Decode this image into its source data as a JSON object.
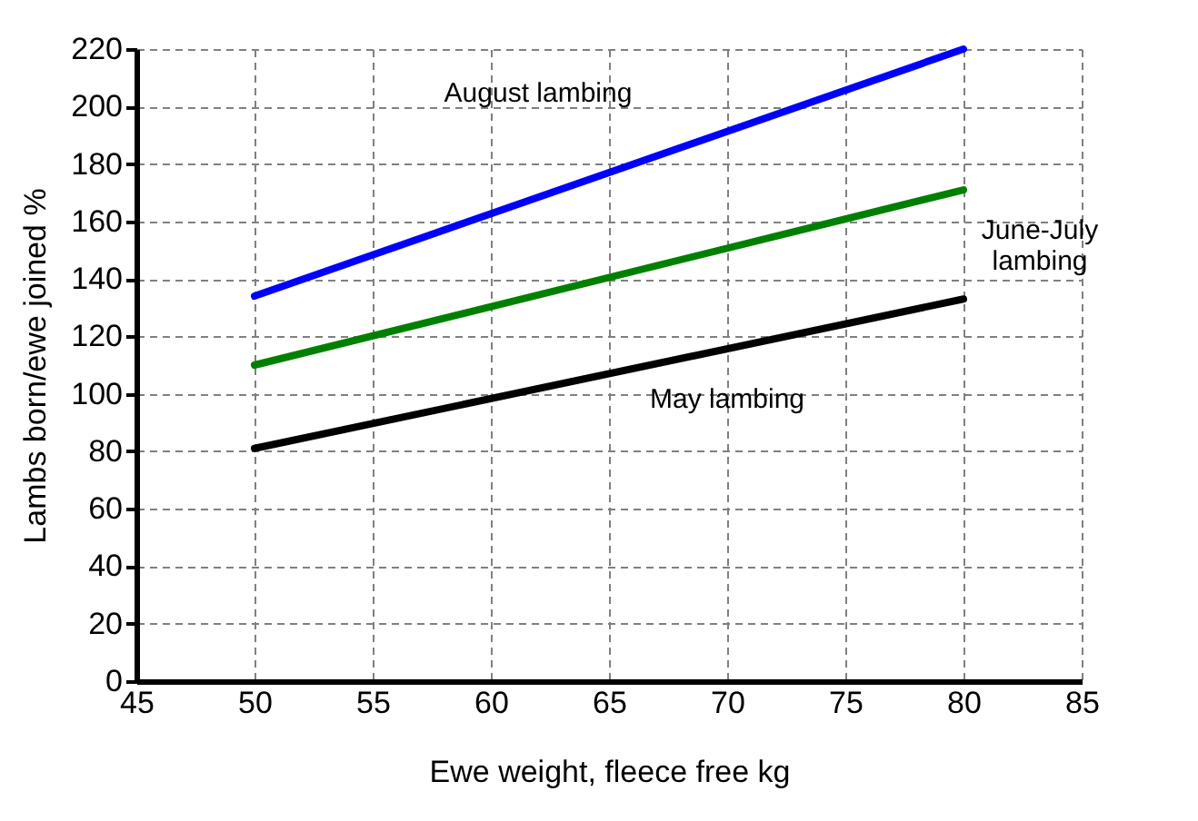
{
  "chart_data": {
    "type": "line",
    "xlabel": "Ewe weight, fleece free kg",
    "ylabel": "Lambs born/ewe joined %",
    "x": [
      50,
      80
    ],
    "series": [
      {
        "name": "August lambing",
        "color": "#0000ff",
        "values": [
          134,
          220
        ]
      },
      {
        "name": "June-July lambing",
        "color": "#008000",
        "values": [
          110,
          171
        ]
      },
      {
        "name": "May lambing",
        "color": "#000000",
        "values": [
          81,
          133
        ]
      }
    ],
    "xlim": [
      45,
      85
    ],
    "xticks": [
      45,
      50,
      55,
      60,
      65,
      70,
      75,
      80,
      85
    ],
    "ylim": [
      0,
      220
    ],
    "yticks": [
      0,
      20,
      40,
      60,
      80,
      100,
      120,
      140,
      160,
      180,
      200,
      220
    ],
    "grid": true,
    "legend": false,
    "marker": "none",
    "line_style": "solid"
  }
}
